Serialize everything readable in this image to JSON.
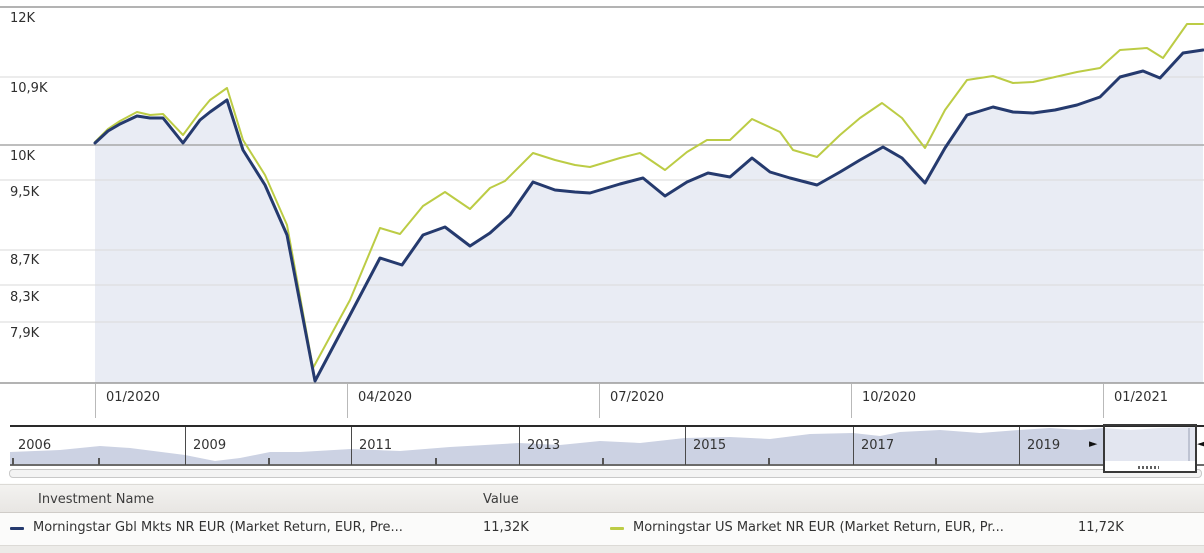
{
  "chart": {
    "y_axis_labels": [
      "12K",
      "10,9K",
      "10K",
      "9,5K",
      "8,7K",
      "8,3K",
      "7,9K"
    ],
    "x_axis_labels": [
      "01/2020",
      "04/2020",
      "07/2020",
      "10/2020",
      "01/2021"
    ]
  },
  "chart_data": [
    {
      "type": "line",
      "title": "Growth of investment value (log scale)",
      "xlabel": "",
      "ylabel": "",
      "y_scale": "log",
      "y_gridline_labels": [
        "12K",
        "10,9K",
        "10K",
        "9,5K",
        "8,7K",
        "8,3K",
        "7,9K"
      ],
      "y_gridline_values_k": [
        12,
        10.9,
        10,
        9.5,
        8.7,
        8.3,
        7.9
      ],
      "baseline_value_k": 10,
      "x_tick_labels": [
        "01/2020",
        "04/2020",
        "07/2020",
        "10/2020",
        "01/2021"
      ],
      "legend_position": "bottom",
      "grid": true,
      "series": [
        {
          "name": "Morningstar Gbl Mkts NR EUR (Market Return, EUR, Pre...",
          "color": "#253a6e",
          "final_value": "11,32K",
          "area_fill": "#e9ecf4",
          "stroke_width": 3,
          "px": [
            [
              95,
              143
            ],
            [
              108,
              131
            ],
            [
              120,
              124
            ],
            [
              137,
              116
            ],
            [
              150,
              118
            ],
            [
              163,
              118
            ],
            [
              183,
              143
            ],
            [
              200,
              120
            ],
            [
              210,
              112
            ],
            [
              227,
              100
            ],
            [
              243,
              150
            ],
            [
              265,
              185
            ],
            [
              287,
              235
            ],
            [
              315,
              381
            ],
            [
              350,
              315
            ],
            [
              380,
              258
            ],
            [
              402,
              265
            ],
            [
              423,
              235
            ],
            [
              445,
              227
            ],
            [
              470,
              246
            ],
            [
              490,
              233
            ],
            [
              510,
              215
            ],
            [
              533,
              182
            ],
            [
              555,
              190
            ],
            [
              575,
              192
            ],
            [
              590,
              193
            ],
            [
              620,
              184
            ],
            [
              643,
              178
            ],
            [
              665,
              196
            ],
            [
              687,
              182
            ],
            [
              708,
              173
            ],
            [
              730,
              177
            ],
            [
              752,
              158
            ],
            [
              770,
              172
            ],
            [
              790,
              178
            ],
            [
              817,
              185
            ],
            [
              840,
              172
            ],
            [
              860,
              160
            ],
            [
              883,
              147
            ],
            [
              902,
              158
            ],
            [
              925,
              183
            ],
            [
              945,
              148
            ],
            [
              967,
              115
            ],
            [
              993,
              107
            ],
            [
              1013,
              112
            ],
            [
              1033,
              113
            ],
            [
              1055,
              110
            ],
            [
              1077,
              105
            ],
            [
              1100,
              97
            ],
            [
              1120,
              77
            ],
            [
              1143,
              71
            ],
            [
              1160,
              78
            ],
            [
              1183,
              53
            ],
            [
              1203,
              50
            ]
          ],
          "values_k": [
            10.03,
            10.19,
            10.28,
            10.39,
            10.37,
            10.37,
            10.03,
            10.34,
            10.45,
            10.62,
            9.93,
            9.48,
            8.88,
            7.31,
            7.98,
            8.61,
            8.53,
            8.88,
            8.97,
            8.74,
            8.9,
            9.11,
            9.52,
            9.42,
            9.4,
            9.38,
            9.5,
            9.57,
            9.35,
            9.52,
            9.63,
            9.58,
            9.84,
            9.65,
            9.57,
            9.48,
            9.65,
            9.81,
            9.97,
            9.83,
            9.51,
            9.96,
            10.41,
            10.52,
            10.45,
            10.43,
            10.48,
            10.55,
            10.66,
            10.95,
            11.03,
            10.93,
            11.3,
            11.32
          ]
        },
        {
          "name": "Morningstar US Market NR EUR (Market Return, EUR, Pr...",
          "color": "#bccc45",
          "final_value": "11,72K",
          "area_fill": "none",
          "stroke_width": 2,
          "px": [
            [
              95,
              142
            ],
            [
              108,
              129
            ],
            [
              120,
              121
            ],
            [
              137,
              112
            ],
            [
              150,
              115
            ],
            [
              163,
              114
            ],
            [
              183,
              135
            ],
            [
              200,
              112
            ],
            [
              210,
              100
            ],
            [
              227,
              88
            ],
            [
              243,
              140
            ],
            [
              265,
              175
            ],
            [
              287,
              225
            ],
            [
              313,
              368
            ],
            [
              350,
              300
            ],
            [
              380,
              228
            ],
            [
              400,
              234
            ],
            [
              423,
              206
            ],
            [
              445,
              192
            ],
            [
              470,
              209
            ],
            [
              490,
              188
            ],
            [
              505,
              181
            ],
            [
              533,
              153
            ],
            [
              555,
              160
            ],
            [
              575,
              165
            ],
            [
              590,
              167
            ],
            [
              620,
              158
            ],
            [
              640,
              153
            ],
            [
              665,
              170
            ],
            [
              687,
              152
            ],
            [
              707,
              140
            ],
            [
              730,
              140
            ],
            [
              752,
              119
            ],
            [
              780,
              132
            ],
            [
              793,
              150
            ],
            [
              817,
              157
            ],
            [
              840,
              135
            ],
            [
              860,
              118
            ],
            [
              882,
              103
            ],
            [
              902,
              118
            ],
            [
              925,
              148
            ],
            [
              945,
              110
            ],
            [
              967,
              80
            ],
            [
              993,
              76
            ],
            [
              1013,
              83
            ],
            [
              1033,
              82
            ],
            [
              1055,
              77
            ],
            [
              1077,
              72
            ],
            [
              1100,
              68
            ],
            [
              1120,
              50
            ],
            [
              1147,
              48
            ],
            [
              1163,
              58
            ],
            [
              1187,
              24
            ],
            [
              1203,
              24
            ]
          ],
          "values_k": [
            10.04,
            10.22,
            10.32,
            10.45,
            10.41,
            10.42,
            10.14,
            10.45,
            10.62,
            10.79,
            10.07,
            9.61,
            8.99,
            7.44,
            8.14,
            8.96,
            8.89,
            9.22,
            9.4,
            9.18,
            9.45,
            9.53,
            9.9,
            9.8,
            9.74,
            9.71,
            9.84,
            9.9,
            9.67,
            9.91,
            10.07,
            10.07,
            10.35,
            10.17,
            9.94,
            9.85,
            10.14,
            10.37,
            10.57,
            10.37,
            9.96,
            10.48,
            10.9,
            10.96,
            10.86,
            10.87,
            10.94,
            11.02,
            11.07,
            11.34,
            11.37,
            11.22,
            11.72,
            11.72
          ]
        }
      ]
    },
    {
      "type": "area",
      "title": "Timeline overview (2006-2021)",
      "fill": "#ccd2e3",
      "px": [
        [
          10,
          452
        ],
        [
          60,
          450
        ],
        [
          100,
          446
        ],
        [
          130,
          448
        ],
        [
          185,
          455
        ],
        [
          215,
          461
        ],
        [
          240,
          458
        ],
        [
          270,
          452
        ],
        [
          300,
          452
        ],
        [
          351,
          449
        ],
        [
          400,
          451
        ],
        [
          450,
          447
        ],
        [
          519,
          443
        ],
        [
          560,
          445
        ],
        [
          600,
          441
        ],
        [
          640,
          443
        ],
        [
          685,
          438
        ],
        [
          730,
          437
        ],
        [
          770,
          439
        ],
        [
          810,
          434
        ],
        [
          853,
          433
        ],
        [
          880,
          436
        ],
        [
          900,
          432
        ],
        [
          940,
          430
        ],
        [
          980,
          433
        ],
        [
          1019,
          430
        ],
        [
          1050,
          428
        ],
        [
          1080,
          430
        ],
        [
          1103,
          428
        ],
        [
          1130,
          430
        ],
        [
          1160,
          428
        ],
        [
          1197,
          427
        ]
      ]
    }
  ],
  "timeline": {
    "years": [
      "2006",
      "2009",
      "2011",
      "2013",
      "2015",
      "2017",
      "2019"
    ],
    "left_handle_icon": "►",
    "right_handle_icon": "◄"
  },
  "legend": {
    "name_header": "Investment Name",
    "value_header": "Value",
    "rows": [
      {
        "name": "Morningstar Gbl Mkts NR EUR (Market Return, EUR, Pre...",
        "value": "11,32K",
        "color": "#253a6e"
      },
      {
        "name": "Morningstar US Market NR EUR (Market Return, EUR, Pr...",
        "value": "11,72K",
        "color": "#bccc45"
      }
    ]
  }
}
